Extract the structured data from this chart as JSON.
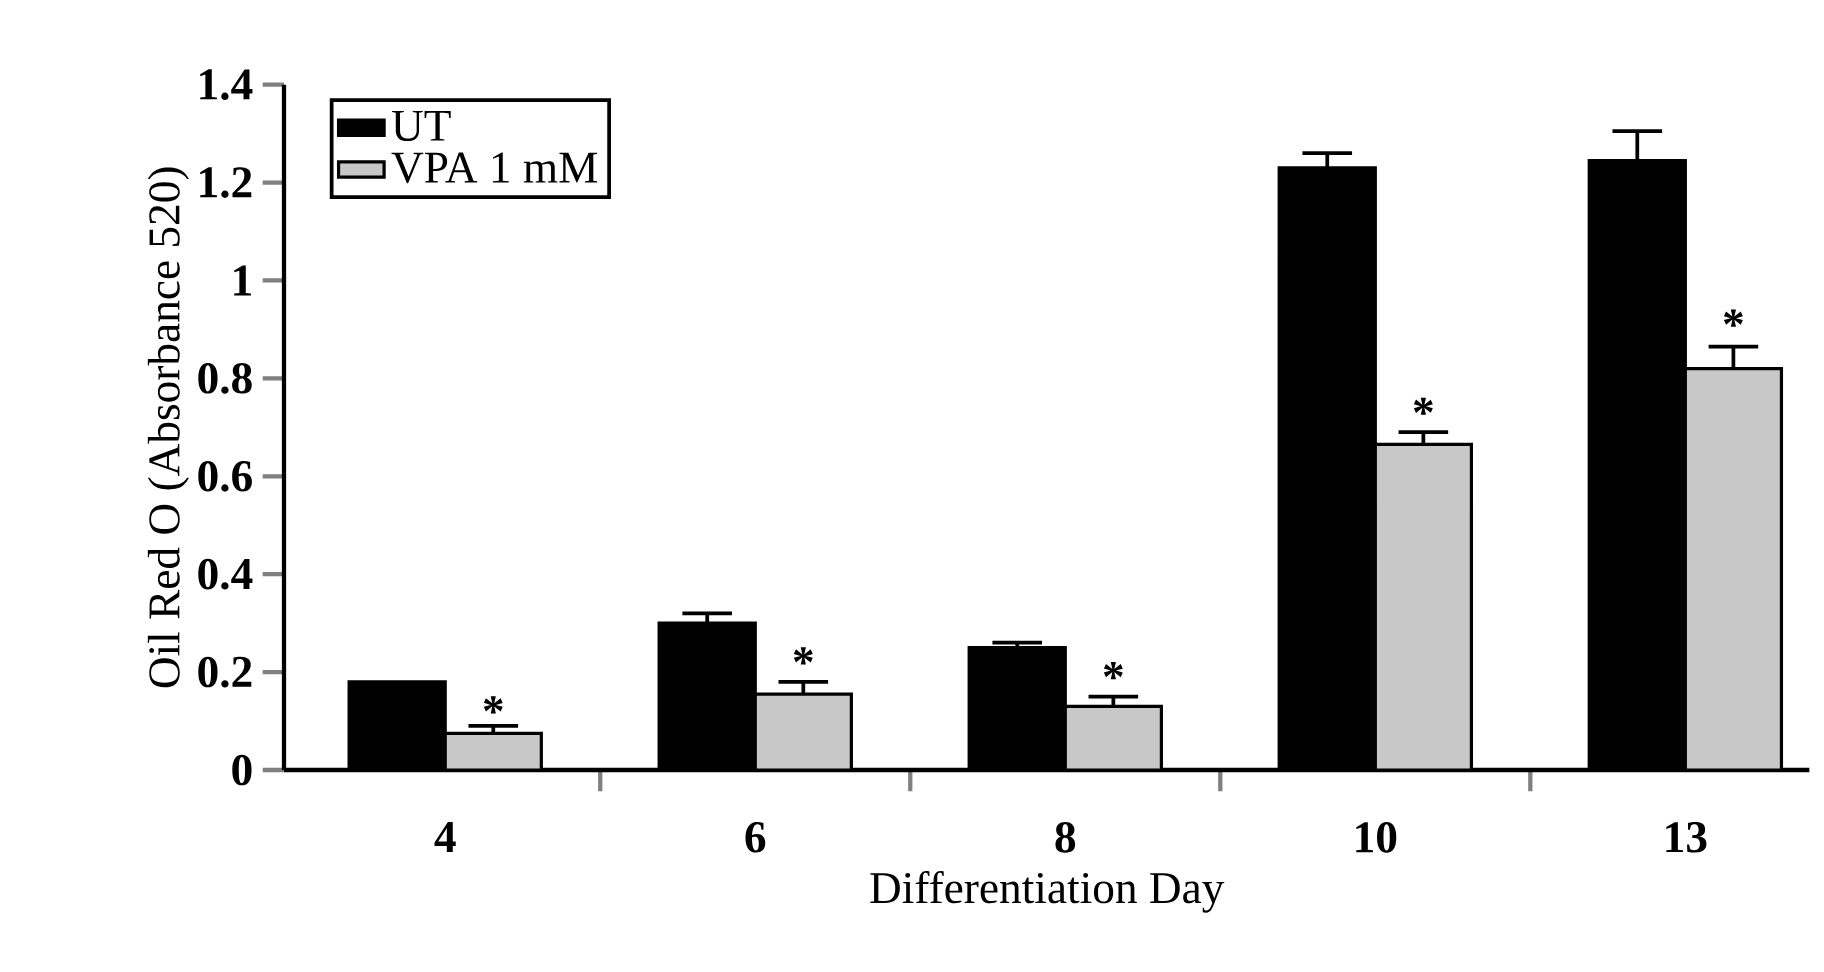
{
  "chart_data": {
    "type": "bar",
    "xlabel": "Differentiation Day",
    "ylabel": "Oil Red O (Absorbance 520)",
    "categories": [
      "4",
      "6",
      "8",
      "10",
      "13"
    ],
    "series": [
      {
        "name": "UT",
        "color": "#000000",
        "values": [
          0.18,
          0.3,
          0.25,
          1.23,
          1.245
        ],
        "errors": [
          null,
          0.02,
          0.01,
          0.03,
          0.06
        ]
      },
      {
        "name": "VPA 1 mM",
        "color": "#c8c8c8",
        "values": [
          0.075,
          0.155,
          0.13,
          0.665,
          0.82
        ],
        "errors": [
          0.015,
          0.025,
          0.02,
          0.025,
          0.045
        ]
      }
    ],
    "ylim": [
      0,
      1.4
    ],
    "yticks": [
      0,
      0.2,
      0.4,
      0.6,
      0.8,
      1,
      1.2,
      1.4
    ],
    "annotations": [
      {
        "text": "*",
        "x": "4",
        "y": 0.12
      },
      {
        "text": "*",
        "x": "6",
        "y": 0.22
      },
      {
        "text": "*",
        "x": "8",
        "y": 0.19
      },
      {
        "text": "*",
        "x": "10",
        "y": 0.73
      },
      {
        "text": "*",
        "x": "13",
        "y": 0.91
      }
    ],
    "legend": "top left",
    "grid": false
  }
}
